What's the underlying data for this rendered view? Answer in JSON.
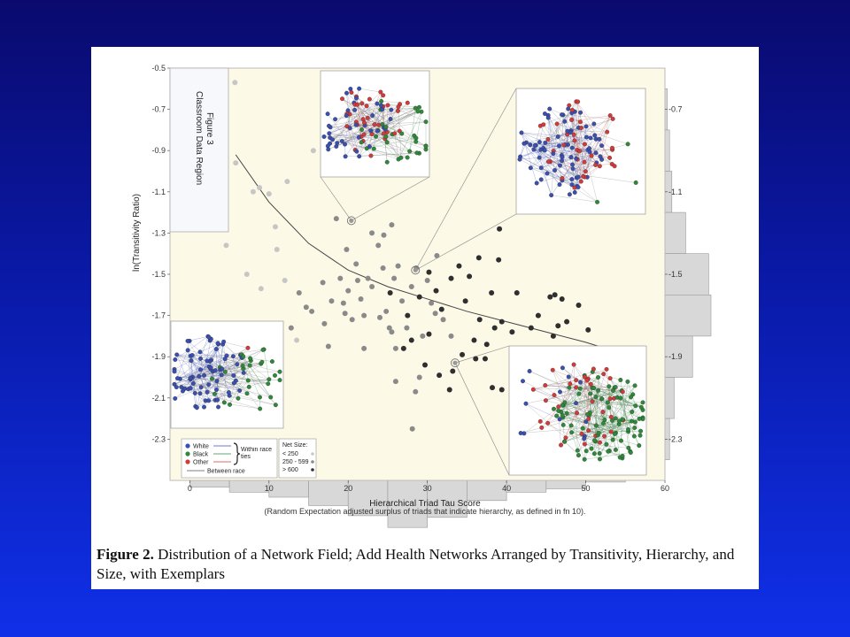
{
  "caption": {
    "label": "Figure 2.",
    "text": " Distribution of a Network Field; Add Health Networks Arranged by Transitivity, Hierarchy, and Size, with Exemplars"
  },
  "colors": {
    "plot_bg": "#fcf9e6",
    "white_node": "#3b4fb0",
    "black_node": "#2e8a3a",
    "other_node": "#d43a3a",
    "hist_fill": "#d8d8d8"
  },
  "chart_data": {
    "type": "scatter",
    "xlabel": "Hierarchical Triad Tau Score",
    "xlabel_note": "(Random Expectation adjusted surplus of triads that indicate hierarchy, as defined in fn 10).",
    "ylabel": "ln(Transitivity Ratio)",
    "x_ticks": [
      "0",
      "10",
      "20",
      "30",
      "40",
      "50",
      "60"
    ],
    "y_ticks": [
      "-0.5",
      "-0.7",
      "-0.9",
      "-1.1",
      "-1.3",
      "-1.5",
      "-1.7",
      "-1.9",
      "-2.1",
      "-2.3"
    ],
    "right_hist_ticks": [
      "-0.7",
      "-1.1",
      "-1.5",
      "-1.9",
      "-2.3"
    ],
    "xlim": [
      -2.5,
      60
    ],
    "ylim": [
      -2.5,
      -0.5
    ],
    "region_label": {
      "title": "Classroom Data Region",
      "subtitle": "Figure 3"
    },
    "legend": {
      "race": [
        "White",
        "Black",
        "Other"
      ],
      "within_race": "Within race ties",
      "between_race": "Between race",
      "size_title": "Net Size:",
      "size_bins": [
        "< 250",
        "250 - 599",
        "> 600"
      ]
    },
    "series": [
      {
        "points": [
          [
            3.5,
            -0.59
          ],
          [
            5.7,
            -0.57
          ],
          [
            4.4,
            -0.8
          ],
          [
            5.8,
            -0.96
          ],
          [
            4.5,
            -0.99
          ],
          [
            8.8,
            -1.08
          ],
          [
            10.0,
            -1.11
          ],
          [
            12.3,
            -1.05
          ],
          [
            10.8,
            -1.27
          ],
          [
            4.6,
            -1.36
          ],
          [
            7.2,
            -1.5
          ],
          [
            8.0,
            -1.1
          ],
          [
            9.0,
            -1.57
          ],
          [
            11.0,
            -1.38
          ],
          [
            12.0,
            -1.53
          ],
          [
            13.5,
            -1.82
          ],
          [
            15.6,
            -0.9
          ]
        ]
      },
      {
        "points": [
          [
            12.8,
            -1.76
          ],
          [
            13.8,
            -1.59
          ],
          [
            14.7,
            -1.66
          ],
          [
            15.4,
            -1.68
          ],
          [
            16.8,
            -1.54
          ],
          [
            17.9,
            -1.63
          ],
          [
            18.5,
            -1.23
          ],
          [
            19.8,
            -1.38
          ],
          [
            19.4,
            -1.64
          ],
          [
            20.0,
            -1.58
          ],
          [
            21.0,
            -1.45
          ],
          [
            21.6,
            -1.62
          ],
          [
            22.0,
            -1.7
          ],
          [
            23.0,
            -1.56
          ],
          [
            23.8,
            -1.36
          ],
          [
            24.5,
            -1.31
          ],
          [
            24.4,
            -1.47
          ],
          [
            25.5,
            -1.26
          ],
          [
            25.8,
            -1.52
          ],
          [
            26.3,
            -1.46
          ],
          [
            26.8,
            -1.63
          ],
          [
            27.4,
            -1.76
          ],
          [
            28.6,
            -1.47
          ],
          [
            29.4,
            -1.8
          ],
          [
            24.0,
            -1.71
          ],
          [
            25.2,
            -1.76
          ],
          [
            26.0,
            -1.86
          ],
          [
            22.5,
            -1.52
          ],
          [
            19.6,
            -1.69
          ],
          [
            17.0,
            -1.74
          ],
          [
            21.2,
            -1.53
          ],
          [
            24.8,
            -1.68
          ],
          [
            28.0,
            -1.56
          ],
          [
            30.0,
            -1.53
          ],
          [
            31.0,
            -1.69
          ],
          [
            30.5,
            -1.64
          ],
          [
            23.0,
            -1.3
          ],
          [
            17.5,
            -1.85
          ],
          [
            26.0,
            -2.02
          ],
          [
            25.5,
            -1.78
          ],
          [
            28.1,
            -2.25
          ],
          [
            31.2,
            -1.41
          ],
          [
            32.0,
            -1.72
          ],
          [
            33.0,
            -1.8
          ],
          [
            29.0,
            -2.0
          ],
          [
            28.5,
            -2.07
          ],
          [
            19.0,
            -1.52
          ],
          [
            22.0,
            -1.86
          ],
          [
            20.5,
            -1.72
          ]
        ]
      },
      {
        "points": [
          [
            25.3,
            -1.59
          ],
          [
            27.5,
            -1.7
          ],
          [
            28.0,
            -1.82
          ],
          [
            29.0,
            -1.61
          ],
          [
            30.2,
            -1.49
          ],
          [
            31.1,
            -1.58
          ],
          [
            31.8,
            -1.67
          ],
          [
            33.0,
            -1.52
          ],
          [
            34.0,
            -1.46
          ],
          [
            34.8,
            -1.63
          ],
          [
            35.3,
            -1.51
          ],
          [
            35.9,
            -1.82
          ],
          [
            36.6,
            -1.72
          ],
          [
            37.3,
            -1.91
          ],
          [
            38.1,
            -1.59
          ],
          [
            39.0,
            -1.43
          ],
          [
            39.4,
            -1.73
          ],
          [
            40.7,
            -1.78
          ],
          [
            41.3,
            -1.59
          ],
          [
            44.0,
            -1.7
          ],
          [
            45.9,
            -1.8
          ],
          [
            47.0,
            -1.62
          ],
          [
            49.1,
            -1.65
          ],
          [
            44.3,
            -2.17
          ],
          [
            45.5,
            -1.61
          ],
          [
            46.5,
            -1.75
          ],
          [
            48.3,
            -1.91
          ],
          [
            49.4,
            -1.86
          ],
          [
            38.5,
            -1.76
          ],
          [
            33.2,
            -1.97
          ],
          [
            34.4,
            -1.89
          ],
          [
            36.1,
            -1.91
          ],
          [
            39.4,
            -2.06
          ],
          [
            41.7,
            -1.93
          ],
          [
            52.6,
            -1.89
          ],
          [
            55.1,
            -1.92
          ],
          [
            50.3,
            -1.77
          ],
          [
            30.2,
            -1.79
          ],
          [
            27.0,
            -1.86
          ],
          [
            32.8,
            -2.06
          ],
          [
            38.2,
            -2.05
          ],
          [
            47.6,
            -1.73
          ],
          [
            36.5,
            -1.42
          ],
          [
            39.1,
            -1.28
          ],
          [
            46.1,
            -1.6
          ],
          [
            43.1,
            -1.76
          ],
          [
            41.7,
            -1.88
          ],
          [
            37.5,
            -1.84
          ],
          [
            31.5,
            -1.99
          ],
          [
            29.7,
            -1.94
          ]
        ]
      }
    ],
    "trend_line": [
      [
        5.8,
        -0.92
      ],
      [
        10,
        -1.15
      ],
      [
        15,
        -1.35
      ],
      [
        20,
        -1.48
      ],
      [
        25,
        -1.56
      ],
      [
        30,
        -1.62
      ],
      [
        35,
        -1.68
      ],
      [
        40,
        -1.73
      ],
      [
        45,
        -1.78
      ],
      [
        50,
        -1.83
      ],
      [
        55,
        -1.89
      ]
    ],
    "exemplar_points": [
      [
        20.4,
        -1.24
      ],
      [
        10.7,
        -1.84
      ],
      [
        28.5,
        -1.48
      ],
      [
        33.5,
        -1.93
      ]
    ],
    "x_hist": [
      [
        2.5,
        0.2
      ],
      [
        7.5,
        0.35
      ],
      [
        12.5,
        0.5
      ],
      [
        17.5,
        0.75
      ],
      [
        22.5,
        1.05
      ],
      [
        27.5,
        1.4
      ],
      [
        32.5,
        1.1
      ],
      [
        37.5,
        0.6
      ],
      [
        42.5,
        0.35
      ],
      [
        47.5,
        0.25
      ],
      [
        52.5,
        0.05
      ]
    ],
    "y_hist": [
      [
        -0.7,
        0.05
      ],
      [
        -0.9,
        0.1
      ],
      [
        -1.1,
        0.15
      ],
      [
        -1.3,
        0.45
      ],
      [
        -1.5,
        0.95
      ],
      [
        -1.7,
        1.0
      ],
      [
        -1.9,
        0.6
      ],
      [
        -2.1,
        0.2
      ],
      [
        -2.3,
        0.1
      ]
    ]
  }
}
